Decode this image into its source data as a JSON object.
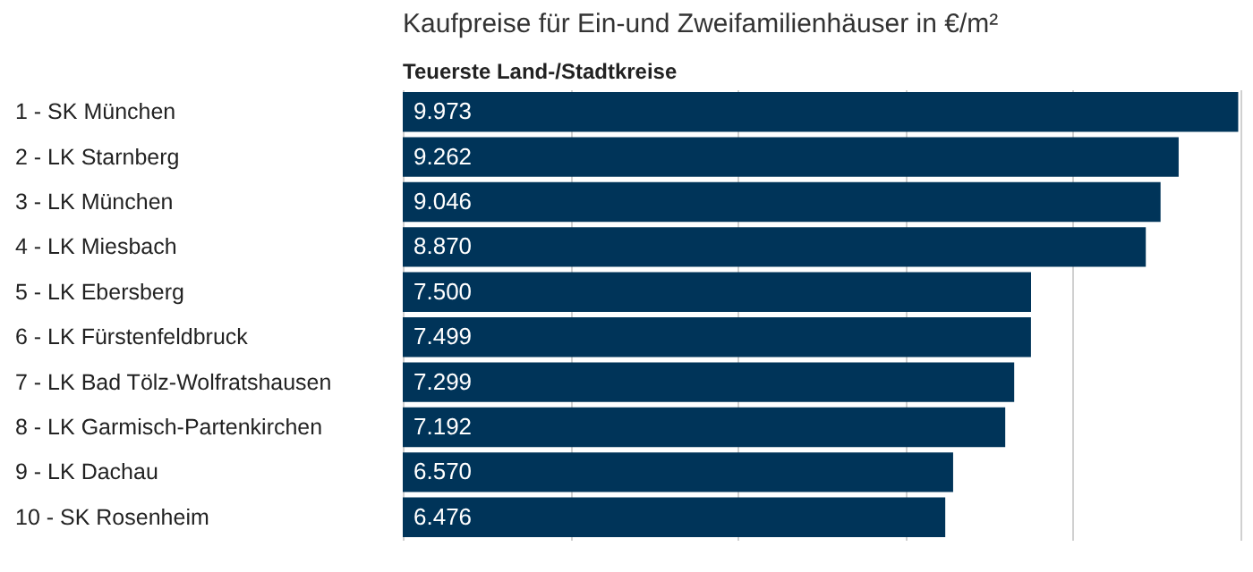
{
  "chart_data": {
    "type": "bar",
    "orientation": "horizontal",
    "title": "Kaufpreise für Ein-und Zweifamilienhäuser in €/m²",
    "subtitle": "Teuerste Land-/Stadtkreise",
    "categories": [
      "1 - SK München",
      "2 - LK Starnberg",
      "3 - LK München",
      "4 - LK Miesbach",
      "5 - LK Ebersberg",
      "6 - LK Fürstenfeldbruck",
      "7 - LK Bad Tölz-Wolfratshausen",
      "8 - LK Garmisch-Partenkirchen",
      "9 - LK Dachau",
      "10 - SK Rosenheim"
    ],
    "values": [
      9973,
      9262,
      9046,
      8870,
      7500,
      7499,
      7299,
      7192,
      6570,
      6476
    ],
    "value_labels": [
      "9.973",
      "9.262",
      "9.046",
      "8.870",
      "7.500",
      "7.499",
      "7.299",
      "7.192",
      "6.570",
      "6.476"
    ],
    "color": "#003459",
    "xlim": [
      0,
      10000
    ],
    "xticks": [
      {
        "value": 0,
        "label": null
      },
      {
        "value": 2000,
        "label": null
      },
      {
        "value": 4000,
        "label": null
      },
      {
        "value": 6000,
        "label": null
      },
      {
        "value": 8000,
        "label": null
      },
      {
        "value": 10000,
        "label": null
      }
    ],
    "grid": "x",
    "tick_labels": "y"
  }
}
